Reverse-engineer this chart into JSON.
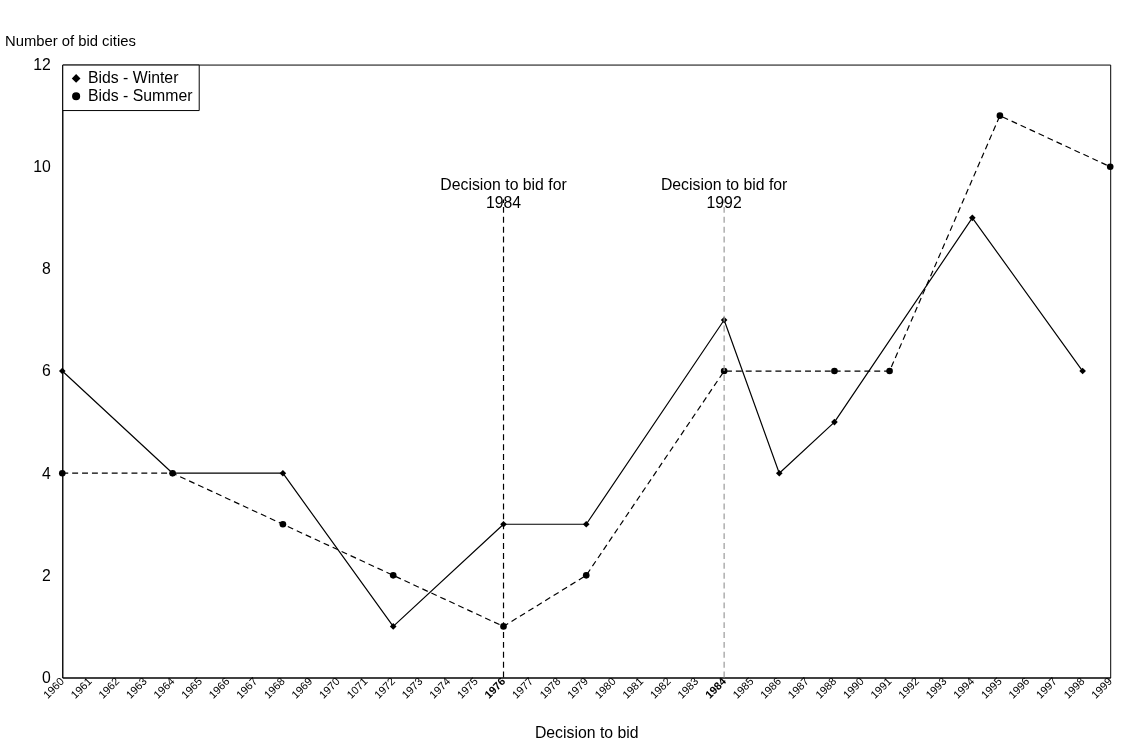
{
  "chart_data": {
    "type": "line",
    "xlabel": "Decision to bid",
    "ylabel": "Number of bid cities",
    "categories": [
      "1960",
      "1961",
      "1962",
      "1963",
      "1964",
      "1965",
      "1966",
      "1967",
      "1968",
      "1969",
      "1970",
      "1071",
      "1972",
      "1973",
      "1974",
      "1975",
      "1976",
      "1977",
      "1978",
      "1979",
      "1980",
      "1981",
      "1982",
      "1983",
      "1984",
      "1985",
      "1986",
      "1987",
      "1988",
      "1990",
      "1991",
      "1992",
      "1993",
      "1994",
      "1995",
      "1996",
      "1997",
      "1998",
      "1999"
    ],
    "series": [
      {
        "name": "Bids - Winter",
        "color": "#000000",
        "marker": "diamond",
        "line_style": "solid",
        "values": [
          6,
          null,
          null,
          null,
          4,
          null,
          null,
          null,
          4,
          null,
          null,
          null,
          1,
          null,
          null,
          null,
          3,
          null,
          null,
          3,
          null,
          null,
          null,
          null,
          7,
          null,
          4,
          null,
          5,
          null,
          null,
          null,
          null,
          9,
          null,
          null,
          null,
          6,
          null
        ]
      },
      {
        "name": "Bids - Summer",
        "color": "#000000",
        "marker": "circle",
        "line_style": "dashed",
        "values": [
          4,
          null,
          null,
          null,
          4,
          null,
          null,
          null,
          3,
          null,
          null,
          null,
          2,
          null,
          null,
          null,
          1,
          null,
          null,
          2,
          null,
          null,
          null,
          null,
          6,
          null,
          null,
          null,
          6,
          null,
          6,
          null,
          null,
          null,
          11,
          null,
          null,
          null,
          10
        ]
      }
    ],
    "ylim": [
      0,
      12
    ],
    "yticks": [
      0,
      2,
      4,
      6,
      8,
      10,
      12
    ],
    "grid": false,
    "legend": "top left",
    "ref_lines": [
      {
        "axis": "x",
        "value": "1976",
        "label": "Decision to bid for\n1984",
        "color": "#000000",
        "line_style": "dashed"
      },
      {
        "axis": "x",
        "value": "1984",
        "label": "Decision to bid for\n1992",
        "color": "#999999",
        "line_style": "dashed"
      }
    ]
  }
}
